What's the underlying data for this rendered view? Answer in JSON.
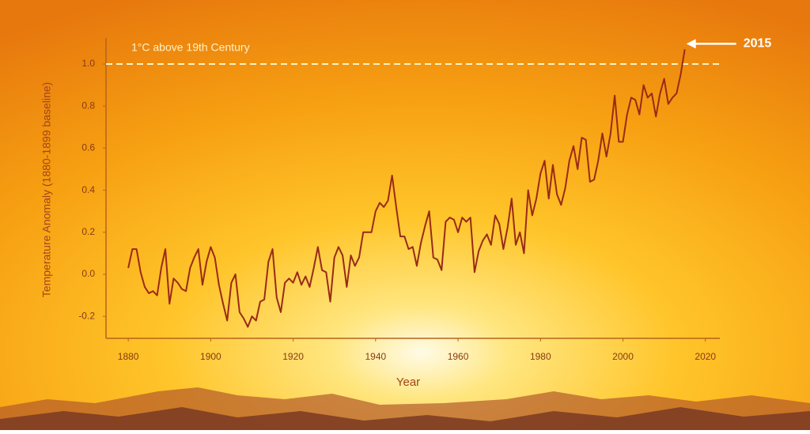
{
  "chart_data": {
    "type": "line",
    "xlabel": "Year",
    "ylabel": "Temperature Anomaly (1880-1899 baseline)",
    "x": [
      1880,
      1881,
      1882,
      1883,
      1884,
      1885,
      1886,
      1887,
      1888,
      1889,
      1890,
      1891,
      1892,
      1893,
      1894,
      1895,
      1896,
      1897,
      1898,
      1899,
      1900,
      1901,
      1902,
      1903,
      1904,
      1905,
      1906,
      1907,
      1908,
      1909,
      1910,
      1911,
      1912,
      1913,
      1914,
      1915,
      1916,
      1917,
      1918,
      1919,
      1920,
      1921,
      1922,
      1923,
      1924,
      1925,
      1926,
      1927,
      1928,
      1929,
      1930,
      1931,
      1932,
      1933,
      1934,
      1935,
      1936,
      1937,
      1938,
      1939,
      1940,
      1941,
      1942,
      1943,
      1944,
      1945,
      1946,
      1947,
      1948,
      1949,
      1950,
      1951,
      1952,
      1953,
      1954,
      1955,
      1956,
      1957,
      1958,
      1959,
      1960,
      1961,
      1962,
      1963,
      1964,
      1965,
      1966,
      1967,
      1968,
      1969,
      1970,
      1971,
      1972,
      1973,
      1974,
      1975,
      1976,
      1977,
      1978,
      1979,
      1980,
      1981,
      1982,
      1983,
      1984,
      1985,
      1986,
      1987,
      1988,
      1989,
      1990,
      1991,
      1992,
      1993,
      1994,
      1995,
      1996,
      1997,
      1998,
      1999,
      2000,
      2001,
      2002,
      2003,
      2004,
      2005,
      2006,
      2007,
      2008,
      2009,
      2010,
      2011,
      2012,
      2013,
      2014,
      2015
    ],
    "values": [
      0.03,
      0.12,
      0.12,
      0.01,
      -0.06,
      -0.09,
      -0.08,
      -0.1,
      0.03,
      0.12,
      -0.14,
      -0.02,
      -0.04,
      -0.07,
      -0.08,
      0.03,
      0.08,
      0.12,
      -0.05,
      0.06,
      0.13,
      0.08,
      -0.05,
      -0.14,
      -0.22,
      -0.04,
      0.0,
      -0.18,
      -0.21,
      -0.25,
      -0.2,
      -0.22,
      -0.13,
      -0.12,
      0.06,
      0.12,
      -0.11,
      -0.18,
      -0.04,
      -0.02,
      -0.04,
      0.01,
      -0.05,
      -0.01,
      -0.06,
      0.03,
      0.13,
      0.02,
      0.01,
      -0.13,
      0.08,
      0.13,
      0.09,
      -0.06,
      0.09,
      0.04,
      0.08,
      0.2,
      0.2,
      0.2,
      0.3,
      0.34,
      0.32,
      0.35,
      0.47,
      0.32,
      0.18,
      0.18,
      0.12,
      0.13,
      0.04,
      0.15,
      0.23,
      0.3,
      0.08,
      0.07,
      0.02,
      0.25,
      0.27,
      0.26,
      0.2,
      0.27,
      0.25,
      0.27,
      0.01,
      0.11,
      0.16,
      0.19,
      0.14,
      0.28,
      0.24,
      0.12,
      0.22,
      0.36,
      0.14,
      0.2,
      0.1,
      0.4,
      0.28,
      0.36,
      0.48,
      0.54,
      0.36,
      0.52,
      0.38,
      0.33,
      0.41,
      0.54,
      0.61,
      0.5,
      0.65,
      0.64,
      0.44,
      0.45,
      0.54,
      0.67,
      0.56,
      0.67,
      0.85,
      0.63,
      0.63,
      0.76,
      0.84,
      0.83,
      0.76,
      0.9,
      0.84,
      0.86,
      0.75,
      0.86,
      0.93,
      0.81,
      0.84,
      0.86,
      0.95,
      1.07
    ],
    "color": "#9a2a17",
    "xlim": [
      1874.6,
      2023.5
    ],
    "xticks": [
      1880,
      1900,
      1920,
      1940,
      1960,
      1980,
      2000,
      2020
    ],
    "ylim": [
      -0.3045,
      1.124
    ],
    "yticks": [
      -0.2,
      {
        "value": 0,
        "label": "0.0"
      },
      0.2,
      0.4,
      0.6,
      0.8,
      {
        "value": 1,
        "label": "1.0"
      }
    ],
    "reference_line": {
      "value": 1,
      "label": "1°C above 19th Century"
    },
    "annotation": {
      "x": 2015,
      "text": "2015"
    }
  }
}
